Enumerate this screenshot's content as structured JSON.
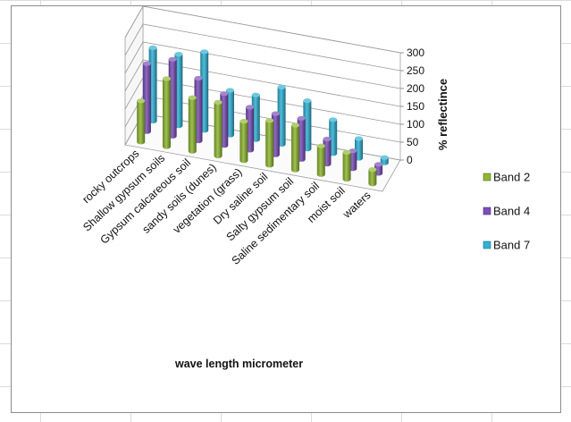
{
  "chart_data": {
    "type": "bar",
    "subtype": "3d-clustered-column",
    "categories": [
      "rocky outcrops",
      "Shallow gypsum soils",
      "Gypsum calcareous soil",
      "sandy soils (dunes)",
      "vegetation (grass)",
      "Dry saline soil",
      "Salty gypsum soil",
      "Saline sedimentary soil",
      "moist soil",
      "waters"
    ],
    "series": [
      {
        "name": "Band 2",
        "values": [
          115,
          190,
          150,
          150,
          110,
          125,
          125,
          80,
          75,
          40
        ]
      },
      {
        "name": "Band 4",
        "values": [
          190,
          215,
          175,
          145,
          120,
          115,
          115,
          70,
          50,
          25
        ]
      },
      {
        "name": "Band 7",
        "values": [
          205,
          200,
          220,
          125,
          125,
          160,
          135,
          95,
          55,
          15
        ]
      }
    ],
    "xlabel": "wave length  micrometer",
    "ylabel": "% reflectince",
    "yticks": [
      "0",
      "50",
      "100",
      "150",
      "200",
      "250",
      "300"
    ],
    "ylim": [
      0,
      300
    ],
    "legend": "right",
    "grid": true,
    "colors": {
      "Band 2": "#8fb732",
      "Band 4": "#7b4fb8",
      "Band 7": "#31b1d3"
    }
  }
}
